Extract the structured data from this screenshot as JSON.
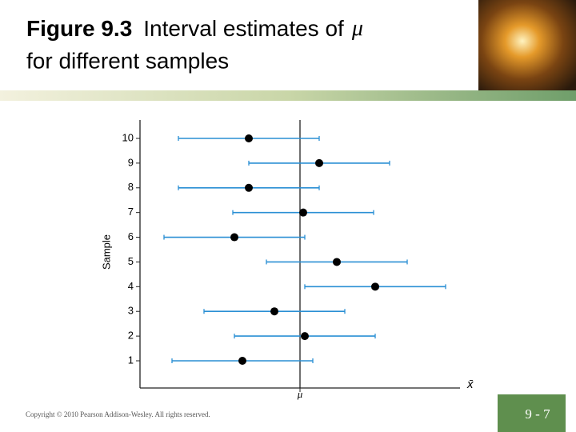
{
  "slide": {
    "title_bold": "Figure 9.3",
    "title_rest": "Interval estimates of",
    "title_symbol": "μ",
    "title_line2": "for different samples",
    "copyright": "Copyright © 2010 Pearson Addison-Wesley. All rights reserved.",
    "page_number": "9 - 7"
  },
  "chart_data": {
    "type": "errorbar",
    "ylabel": "Sample",
    "xlabel": "x̄",
    "categories": [
      "1",
      "2",
      "3",
      "4",
      "5",
      "6",
      "7",
      "8",
      "9",
      "10"
    ],
    "values": [
      32,
      51.5,
      42,
      73.5,
      61.5,
      29.5,
      51,
      34,
      56,
      34
    ],
    "errors": [
      22,
      22,
      22,
      22,
      22,
      22,
      22,
      22,
      22,
      22
    ],
    "color": "#2a8fd4",
    "point_color": "#000000",
    "xlim": [
      0,
      100
    ],
    "xticks": [
      {
        "value": 50,
        "label": "μ"
      }
    ]
  }
}
